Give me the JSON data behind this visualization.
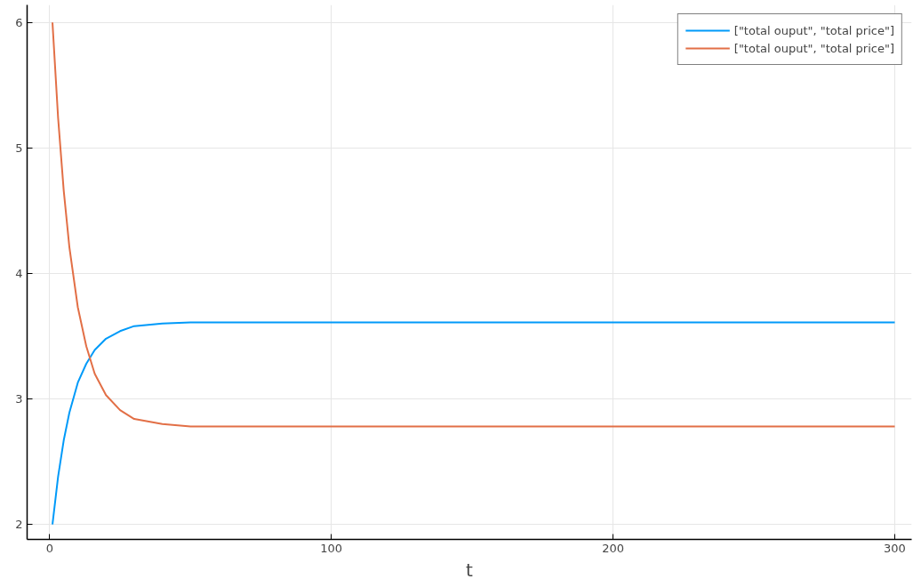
{
  "chart_data": {
    "type": "line",
    "xlabel": "t",
    "x": [
      1,
      3,
      5,
      7,
      10,
      13,
      16,
      20,
      25,
      30,
      40,
      50,
      60,
      80,
      100,
      150,
      200,
      250,
      300
    ],
    "series": [
      {
        "name": "[\"total ouput\", \"total price\"]",
        "color": "#009af9",
        "values": [
          2.0,
          2.38,
          2.67,
          2.89,
          3.13,
          3.28,
          3.39,
          3.48,
          3.54,
          3.58,
          3.6,
          3.61,
          3.61,
          3.61,
          3.61,
          3.61,
          3.61,
          3.61,
          3.61
        ]
      },
      {
        "name": "[\"total ouput\", \"total price\"]",
        "color": "#e26f46",
        "values": [
          6.0,
          5.24,
          4.66,
          4.21,
          3.73,
          3.42,
          3.2,
          3.03,
          2.91,
          2.84,
          2.8,
          2.78,
          2.78,
          2.78,
          2.78,
          2.78,
          2.78,
          2.78,
          2.78
        ]
      }
    ],
    "xlim": [
      -8,
      306
    ],
    "ylim": [
      1.88,
      6.14
    ],
    "xticks": [
      0,
      100,
      200,
      300
    ],
    "yticks": [
      2,
      3,
      4,
      5,
      6
    ],
    "grid": true,
    "legend": "top right",
    "line_style": "solid",
    "marker": "none"
  }
}
